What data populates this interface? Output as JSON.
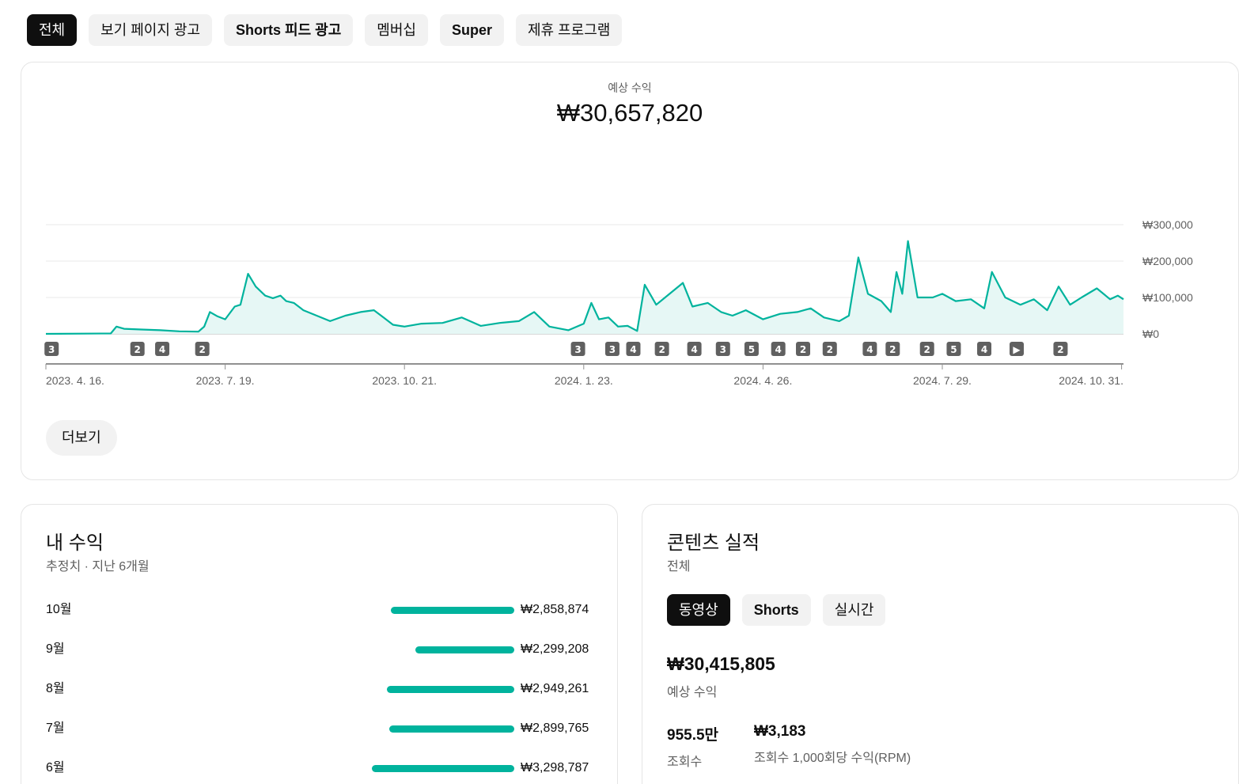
{
  "filter_chips": [
    {
      "label": "전체",
      "active": true,
      "bold": false
    },
    {
      "label": "보기 페이지 광고",
      "active": false,
      "bold": false
    },
    {
      "label": "Shorts 피드 광고",
      "active": false,
      "bold": true
    },
    {
      "label": "멤버십",
      "active": false,
      "bold": false
    },
    {
      "label": "Super",
      "active": false,
      "bold": true
    },
    {
      "label": "제휴 프로그램",
      "active": false,
      "bold": false
    }
  ],
  "overview": {
    "label": "예상 수익",
    "value": "₩30,657,820",
    "more_button": "더보기"
  },
  "chart_data": {
    "type": "area",
    "ylim": [
      0,
      300000
    ],
    "y_ticks": [
      {
        "value": 0,
        "label": "₩0"
      },
      {
        "value": 100000,
        "label": "₩100,000"
      },
      {
        "value": 200000,
        "label": "₩200,000"
      },
      {
        "value": 300000,
        "label": "₩300,000"
      }
    ],
    "x_range": [
      "2023-04-16",
      "2024-11-01"
    ],
    "x_ticks": [
      {
        "date": "2023-04-16",
        "label": "2023. 4. 16."
      },
      {
        "date": "2023-07-19",
        "label": "2023. 7. 19."
      },
      {
        "date": "2023-10-21",
        "label": "2023. 10. 21."
      },
      {
        "date": "2024-01-23",
        "label": "2024. 1. 23."
      },
      {
        "date": "2024-04-26",
        "label": "2024. 4. 26."
      },
      {
        "date": "2024-07-29",
        "label": "2024. 7. 29."
      },
      {
        "date": "2024-10-31",
        "label": "2024. 10. 31."
      }
    ],
    "points": [
      [
        "2023-04-16",
        0
      ],
      [
        "2023-05-20",
        1000
      ],
      [
        "2023-05-23",
        20000
      ],
      [
        "2023-05-27",
        14000
      ],
      [
        "2023-06-05",
        12000
      ],
      [
        "2023-06-15",
        10000
      ],
      [
        "2023-06-25",
        7000
      ],
      [
        "2023-07-05",
        6000
      ],
      [
        "2023-07-08",
        20000
      ],
      [
        "2023-07-11",
        60000
      ],
      [
        "2023-07-15",
        48000
      ],
      [
        "2023-07-19",
        40000
      ],
      [
        "2023-07-24",
        75000
      ],
      [
        "2023-07-27",
        80000
      ],
      [
        "2023-07-31",
        165000
      ],
      [
        "2023-08-04",
        130000
      ],
      [
        "2023-08-09",
        105000
      ],
      [
        "2023-08-13",
        98000
      ],
      [
        "2023-08-17",
        105000
      ],
      [
        "2023-08-20",
        90000
      ],
      [
        "2023-08-24",
        85000
      ],
      [
        "2023-08-29",
        65000
      ],
      [
        "2023-09-05",
        50000
      ],
      [
        "2023-09-12",
        35000
      ],
      [
        "2023-09-20",
        50000
      ],
      [
        "2023-09-28",
        60000
      ],
      [
        "2023-10-05",
        65000
      ],
      [
        "2023-10-10",
        45000
      ],
      [
        "2023-10-15",
        25000
      ],
      [
        "2023-10-21",
        20000
      ],
      [
        "2023-10-30",
        28000
      ],
      [
        "2023-11-10",
        30000
      ],
      [
        "2023-11-20",
        45000
      ],
      [
        "2023-11-30",
        22000
      ],
      [
        "2023-12-10",
        30000
      ],
      [
        "2023-12-20",
        35000
      ],
      [
        "2023-12-28",
        60000
      ],
      [
        "2024-01-05",
        20000
      ],
      [
        "2024-01-15",
        10000
      ],
      [
        "2024-01-23",
        28000
      ],
      [
        "2024-01-27",
        85000
      ],
      [
        "2024-01-31",
        40000
      ],
      [
        "2024-02-05",
        45000
      ],
      [
        "2024-02-10",
        20000
      ],
      [
        "2024-02-15",
        22000
      ],
      [
        "2024-02-20",
        8000
      ],
      [
        "2024-02-24",
        135000
      ],
      [
        "2024-03-01",
        80000
      ],
      [
        "2024-03-08",
        110000
      ],
      [
        "2024-03-15",
        140000
      ],
      [
        "2024-03-20",
        75000
      ],
      [
        "2024-03-28",
        85000
      ],
      [
        "2024-04-04",
        60000
      ],
      [
        "2024-04-10",
        50000
      ],
      [
        "2024-04-17",
        65000
      ],
      [
        "2024-04-26",
        40000
      ],
      [
        "2024-05-05",
        55000
      ],
      [
        "2024-05-14",
        60000
      ],
      [
        "2024-05-21",
        70000
      ],
      [
        "2024-05-28",
        45000
      ],
      [
        "2024-06-05",
        35000
      ],
      [
        "2024-06-10",
        50000
      ],
      [
        "2024-06-15",
        210000
      ],
      [
        "2024-06-20",
        110000
      ],
      [
        "2024-06-27",
        90000
      ],
      [
        "2024-07-02",
        60000
      ],
      [
        "2024-07-05",
        170000
      ],
      [
        "2024-07-08",
        110000
      ],
      [
        "2024-07-11",
        255000
      ],
      [
        "2024-07-16",
        100000
      ],
      [
        "2024-07-24",
        100000
      ],
      [
        "2024-07-29",
        110000
      ],
      [
        "2024-08-05",
        90000
      ],
      [
        "2024-08-13",
        95000
      ],
      [
        "2024-08-20",
        70000
      ],
      [
        "2024-08-24",
        170000
      ],
      [
        "2024-08-31",
        100000
      ],
      [
        "2024-09-08",
        80000
      ],
      [
        "2024-09-15",
        95000
      ],
      [
        "2024-09-22",
        65000
      ],
      [
        "2024-09-28",
        130000
      ],
      [
        "2024-10-04",
        80000
      ],
      [
        "2024-10-10",
        100000
      ],
      [
        "2024-10-18",
        125000
      ],
      [
        "2024-10-25",
        95000
      ],
      [
        "2024-10-29",
        105000
      ],
      [
        "2024-11-01",
        95000
      ]
    ],
    "markers": [
      {
        "date": "2023-04-19",
        "label": "3"
      },
      {
        "date": "2023-06-03",
        "label": "2"
      },
      {
        "date": "2023-06-16",
        "label": "4"
      },
      {
        "date": "2023-07-07",
        "label": "2"
      },
      {
        "date": "2024-01-20",
        "label": "3"
      },
      {
        "date": "2024-02-07",
        "label": "3"
      },
      {
        "date": "2024-02-18",
        "label": "4"
      },
      {
        "date": "2024-03-04",
        "label": "2"
      },
      {
        "date": "2024-03-21",
        "label": "4"
      },
      {
        "date": "2024-04-05",
        "label": "3"
      },
      {
        "date": "2024-04-20",
        "label": "5"
      },
      {
        "date": "2024-05-04",
        "label": "4"
      },
      {
        "date": "2024-05-17",
        "label": "2"
      },
      {
        "date": "2024-05-31",
        "label": "2"
      },
      {
        "date": "2024-06-21",
        "label": "4"
      },
      {
        "date": "2024-07-03",
        "label": "2"
      },
      {
        "date": "2024-07-21",
        "label": "2"
      },
      {
        "date": "2024-08-04",
        "label": "5"
      },
      {
        "date": "2024-08-20",
        "label": "4"
      },
      {
        "date": "2024-09-06",
        "label": "▶"
      },
      {
        "date": "2024-09-29",
        "label": "2"
      }
    ]
  },
  "revenue": {
    "title": "내 수익",
    "subtitle": "추정치 · 지난 6개월",
    "months": [
      {
        "month": "10월",
        "amount": "₩2,858,874",
        "value": 2858874
      },
      {
        "month": "9월",
        "amount": "₩2,299,208",
        "value": 2299208
      },
      {
        "month": "8월",
        "amount": "₩2,949,261",
        "value": 2949261
      },
      {
        "month": "7월",
        "amount": "₩2,899,765",
        "value": 2899765
      },
      {
        "month": "6월",
        "amount": "₩3,298,787",
        "value": 3298787
      }
    ]
  },
  "content": {
    "title": "콘텐츠 실적",
    "subtitle": "전체",
    "tabs": [
      {
        "label": "동영상",
        "active": true,
        "bold": false
      },
      {
        "label": "Shorts",
        "active": false,
        "bold": true
      },
      {
        "label": "실시간",
        "active": false,
        "bold": false
      }
    ],
    "revenue_value": "₩30,415,805",
    "revenue_label": "예상 수익",
    "views_value": "955.5만",
    "views_label": "조회수",
    "rpm_value": "₩3,183",
    "rpm_label": "조회수 1,000회당 수익(RPM)"
  },
  "colors": {
    "line": "#00b39d",
    "fill": "#e6f7f5",
    "marker_bg": "#606060",
    "accent_dark": "#0f0f0f"
  }
}
